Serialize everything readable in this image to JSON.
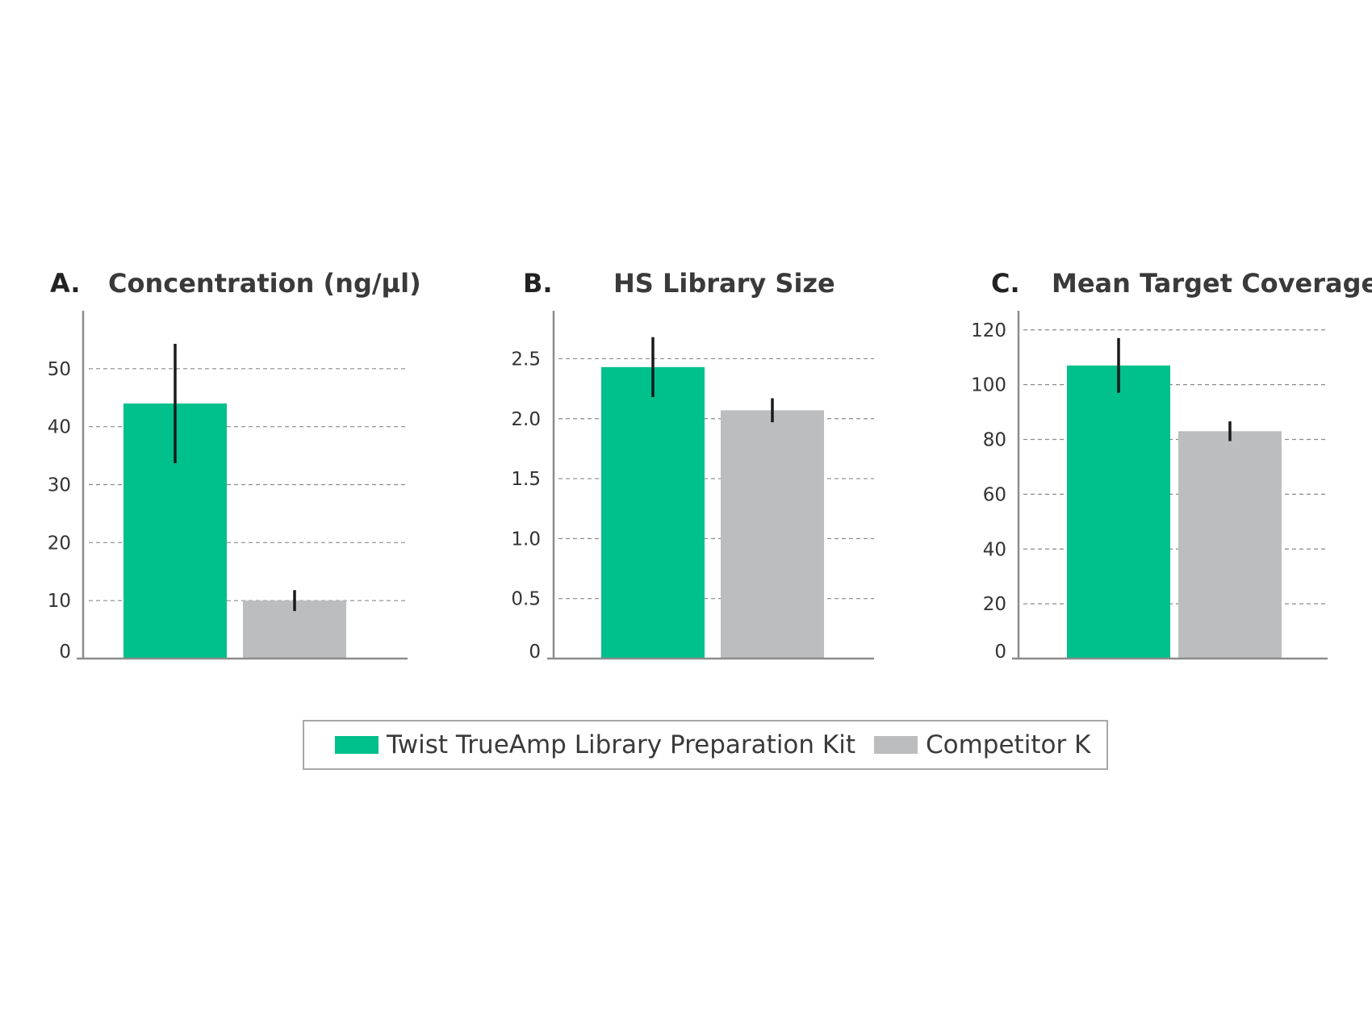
{
  "colors": {
    "series_1": "#00c08b",
    "series_2": "#bcbdbe"
  },
  "legend": {
    "items": [
      {
        "label": "Twist TrueAmp Library Preparation Kit",
        "color": "#00c08b"
      },
      {
        "label": "Competitor K",
        "color": "#bcbdbe"
      }
    ]
  },
  "chart_data": [
    {
      "type": "bar",
      "letter": "A.",
      "title": "Concentration (ng/µl)",
      "categories": [
        "Twist TrueAmp Library Preparation Kit",
        "Competitor K"
      ],
      "values": [
        44,
        10
      ],
      "errors": [
        10.3,
        1.8
      ],
      "ylim": [
        0,
        60
      ],
      "yticks": [
        0,
        10,
        20,
        30,
        40,
        50
      ],
      "ytick_labels": [
        "0",
        "10",
        "20",
        "30",
        "40",
        "50"
      ],
      "grid": true
    },
    {
      "type": "bar",
      "letter": "B.",
      "title": "HS Library Size",
      "categories": [
        "Twist TrueAmp Library Preparation Kit",
        "Competitor K"
      ],
      "values": [
        2.43,
        2.07
      ],
      "errors": [
        0.25,
        0.1
      ],
      "ylim": [
        0,
        2.9
      ],
      "yticks": [
        0,
        0.5,
        1.0,
        1.5,
        2.0,
        2.5
      ],
      "ytick_labels": [
        "0",
        "0.5",
        "1.0",
        "1.5",
        "2.0",
        "2.5"
      ],
      "grid": true
    },
    {
      "type": "bar",
      "letter": "C.",
      "title": "Mean Target Coverage",
      "categories": [
        "Twist TrueAmp Library Preparation Kit",
        "Competitor K"
      ],
      "values": [
        107,
        83
      ],
      "errors": [
        10,
        3.6
      ],
      "ylim": [
        0,
        127
      ],
      "yticks": [
        0,
        20,
        40,
        60,
        80,
        100,
        120
      ],
      "ytick_labels": [
        "0",
        "20",
        "40",
        "60",
        "80",
        "100",
        "120"
      ],
      "grid": true
    }
  ]
}
